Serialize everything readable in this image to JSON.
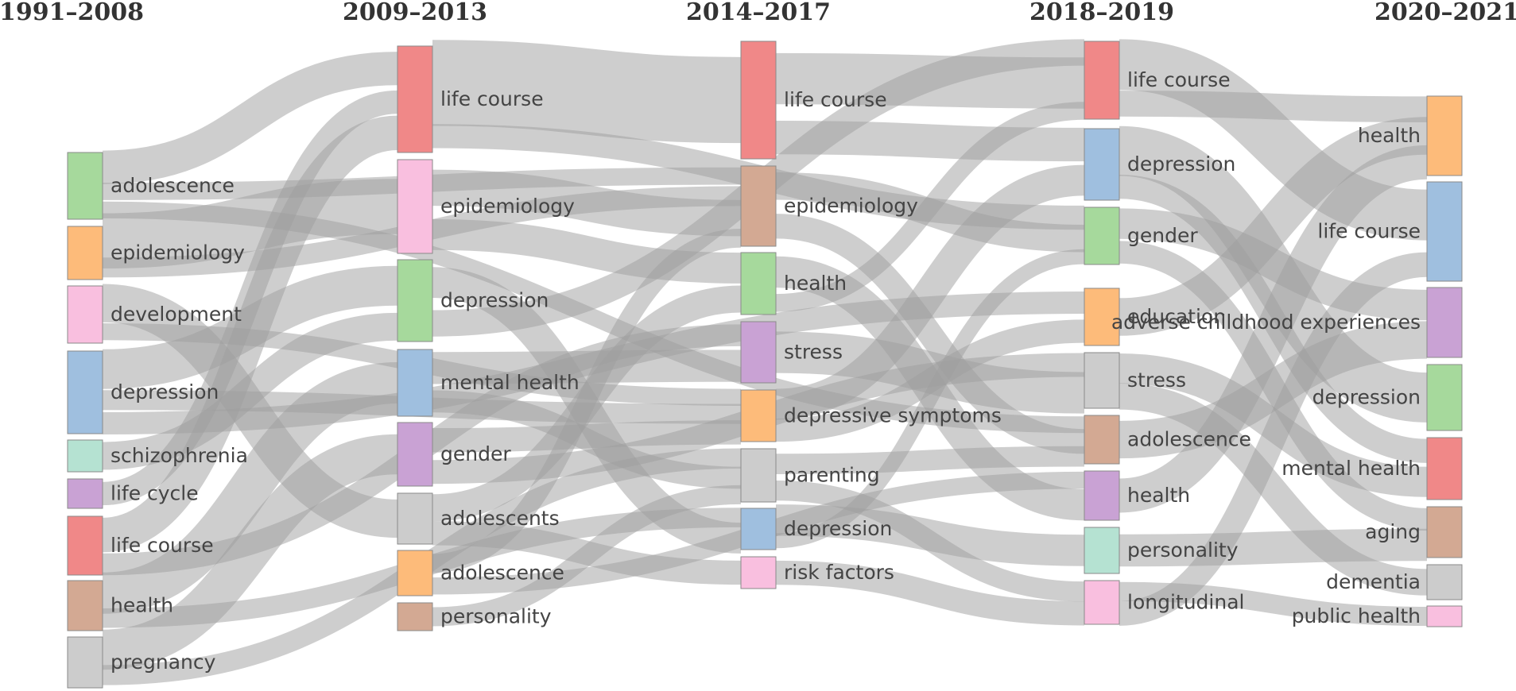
{
  "chart_data": {
    "type": "sankey",
    "columns": [
      {
        "title": "1991–2008",
        "nodes": [
          {
            "label": "adolescence",
            "color": "#a6d99c"
          },
          {
            "label": "epidemiology",
            "color": "#fdbb7a"
          },
          {
            "label": "development",
            "color": "#f9bfdf"
          },
          {
            "label": "depression",
            "color": "#9fbfdf"
          },
          {
            "label": "schizophrenia",
            "color": "#b5e2d2"
          },
          {
            "label": "life cycle",
            "color": "#c9a2d4"
          },
          {
            "label": "life course",
            "color": "#f08888"
          },
          {
            "label": "health",
            "color": "#d3a993"
          },
          {
            "label": "pregnancy",
            "color": "#cccccc"
          }
        ]
      },
      {
        "title": "2009–2013",
        "nodes": [
          {
            "label": "life course",
            "color": "#f08888"
          },
          {
            "label": "epidemiology",
            "color": "#f9bfdf"
          },
          {
            "label": "depression",
            "color": "#a6d99c"
          },
          {
            "label": "mental health",
            "color": "#9fbfdf"
          },
          {
            "label": "gender",
            "color": "#c9a2d4"
          },
          {
            "label": "adolescents",
            "color": "#cccccc"
          },
          {
            "label": "adolescence",
            "color": "#fdbb7a"
          },
          {
            "label": "personality",
            "color": "#d3a993"
          }
        ]
      },
      {
        "title": "2014–2017",
        "nodes": [
          {
            "label": "life course",
            "color": "#f08888"
          },
          {
            "label": "epidemiology",
            "color": "#d3a993"
          },
          {
            "label": "health",
            "color": "#a6d99c"
          },
          {
            "label": "stress",
            "color": "#c9a2d4"
          },
          {
            "label": "depressive symptoms",
            "color": "#fdbb7a"
          },
          {
            "label": "parenting",
            "color": "#cccccc"
          },
          {
            "label": "depression",
            "color": "#9fbfdf"
          },
          {
            "label": "risk factors",
            "color": "#f9bfdf"
          }
        ]
      },
      {
        "title": "2018–2019",
        "nodes": [
          {
            "label": "life course",
            "color": "#f08888"
          },
          {
            "label": "depression",
            "color": "#9fbfdf"
          },
          {
            "label": "gender",
            "color": "#a6d99c"
          },
          {
            "label": "education",
            "color": "#fdbb7a"
          },
          {
            "label": "stress",
            "color": "#cccccc"
          },
          {
            "label": "adolescence",
            "color": "#d3a993"
          },
          {
            "label": "health",
            "color": "#c9a2d4"
          },
          {
            "label": "personality",
            "color": "#b5e2d2"
          },
          {
            "label": "longitudinal",
            "color": "#f9bfdf"
          }
        ]
      },
      {
        "title": "2020–2021",
        "nodes": [
          {
            "label": "health",
            "color": "#fdbb7a"
          },
          {
            "label": "life course",
            "color": "#9fbfdf"
          },
          {
            "label": "adverse childhood experiences",
            "color": "#c9a2d4"
          },
          {
            "label": "depression",
            "color": "#a6d99c"
          },
          {
            "label": "mental health",
            "color": "#f08888"
          },
          {
            "label": "aging",
            "color": "#d3a993"
          },
          {
            "label": "dementia",
            "color": "#cccccc"
          },
          {
            "label": "public health",
            "color": "#f9bfdf"
          }
        ]
      }
    ],
    "links": [
      [
        0,
        0,
        1,
        0,
        8
      ],
      [
        0,
        0,
        2,
        1,
        5
      ],
      [
        0,
        0,
        3,
        5,
        5
      ],
      [
        0,
        1,
        1,
        1,
        6
      ],
      [
        0,
        1,
        2,
        1,
        5
      ],
      [
        0,
        2,
        1,
        5,
        6
      ],
      [
        0,
        2,
        2,
        4,
        4
      ],
      [
        0,
        3,
        1,
        2,
        7
      ],
      [
        0,
        3,
        2,
        4,
        5
      ],
      [
        0,
        3,
        3,
        3,
        4
      ],
      [
        0,
        4,
        1,
        2,
        4
      ],
      [
        0,
        5,
        1,
        0,
        4
      ],
      [
        0,
        6,
        1,
        0,
        7
      ],
      [
        0,
        6,
        2,
        3,
        4
      ],
      [
        0,
        7,
        1,
        3,
        4
      ],
      [
        0,
        7,
        2,
        6,
        4
      ],
      [
        0,
        8,
        1,
        4,
        4
      ],
      [
        0,
        8,
        2,
        5,
        4
      ],
      [
        1,
        0,
        2,
        0,
        9
      ],
      [
        1,
        0,
        3,
        2,
        4
      ],
      [
        1,
        1,
        2,
        1,
        6
      ],
      [
        1,
        1,
        2,
        2,
        4
      ],
      [
        1,
        2,
        2,
        6,
        5
      ],
      [
        1,
        2,
        3,
        0,
        4
      ],
      [
        1,
        3,
        2,
        3,
        5
      ],
      [
        1,
        3,
        2,
        5,
        4
      ],
      [
        1,
        4,
        2,
        4,
        5
      ],
      [
        1,
        4,
        3,
        4,
        4
      ],
      [
        1,
        5,
        2,
        2,
        4
      ],
      [
        1,
        5,
        2,
        7,
        3
      ],
      [
        1,
        6,
        2,
        1,
        4
      ],
      [
        1,
        6,
        3,
        6,
        3
      ],
      [
        1,
        7,
        2,
        5,
        3
      ],
      [
        2,
        0,
        3,
        0,
        7
      ],
      [
        2,
        0,
        3,
        1,
        4
      ],
      [
        2,
        1,
        3,
        2,
        4
      ],
      [
        2,
        1,
        3,
        5,
        4
      ],
      [
        2,
        2,
        3,
        6,
        5
      ],
      [
        2,
        2,
        3,
        0,
        3
      ],
      [
        2,
        3,
        3,
        4,
        5
      ],
      [
        2,
        4,
        3,
        1,
        5
      ],
      [
        2,
        4,
        3,
        3,
        4
      ],
      [
        2,
        5,
        3,
        5,
        4
      ],
      [
        2,
        5,
        3,
        8,
        3
      ],
      [
        2,
        6,
        3,
        7,
        4
      ],
      [
        2,
        6,
        3,
        2,
        3
      ],
      [
        2,
        7,
        3,
        8,
        3
      ],
      [
        3,
        0,
        4,
        1,
        6
      ],
      [
        3,
        0,
        4,
        0,
        4
      ],
      [
        3,
        1,
        4,
        3,
        5
      ],
      [
        3,
        1,
        4,
        4,
        3
      ],
      [
        3,
        2,
        4,
        2,
        4
      ],
      [
        3,
        2,
        4,
        5,
        3
      ],
      [
        3,
        3,
        4,
        0,
        4
      ],
      [
        3,
        4,
        4,
        4,
        4
      ],
      [
        3,
        4,
        4,
        6,
        3
      ],
      [
        3,
        5,
        4,
        2,
        4
      ],
      [
        3,
        6,
        4,
        0,
        4
      ],
      [
        3,
        7,
        4,
        5,
        3
      ],
      [
        3,
        8,
        4,
        7,
        3
      ],
      [
        3,
        8,
        4,
        1,
        3
      ]
    ]
  }
}
